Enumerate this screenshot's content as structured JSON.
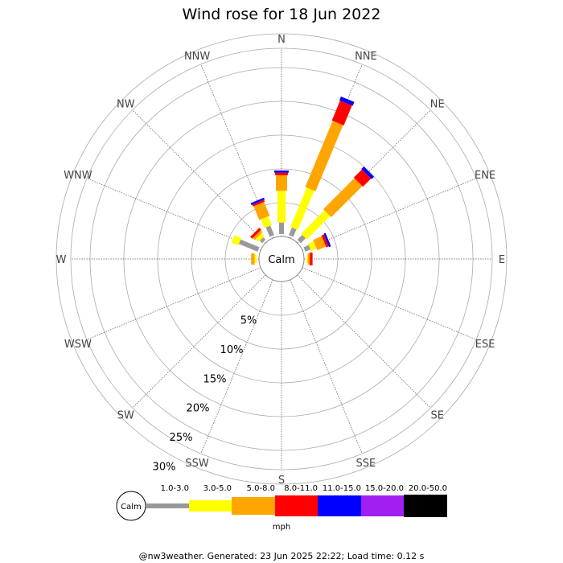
{
  "chart_data": {
    "type": "windrose",
    "title": "Wind rose for 18 Jun 2022",
    "calm_label": "Calm",
    "directions": [
      "N",
      "NNE",
      "NE",
      "ENE",
      "E",
      "ESE",
      "SE",
      "SSE",
      "S",
      "SSW",
      "SW",
      "WSW",
      "W",
      "WNW",
      "NW",
      "NNW"
    ],
    "ring_labels": [
      "5%",
      "10%",
      "15%",
      "20%",
      "25%",
      "30%"
    ],
    "ring_values": [
      5,
      10,
      15,
      20,
      25,
      30
    ],
    "unit": "mph",
    "bins": [
      {
        "label": "1.0-3.0",
        "color": "#999999"
      },
      {
        "label": "3.0-5.0",
        "color": "#ffff00"
      },
      {
        "label": "5.0-8.0",
        "color": "#ffa500"
      },
      {
        "label": "8.0-11.0",
        "color": "#ff0000"
      },
      {
        "label": "11.0-15.0",
        "color": "#0000ff"
      },
      {
        "label": "15.0-20.0",
        "color": "#a020f0"
      },
      {
        "label": "20.0-50.0",
        "color": "#000000"
      }
    ],
    "series": [
      {
        "direction": "N",
        "values": [
          1.7,
          4.7,
          2.3,
          0.4,
          0.3,
          0,
          0
        ]
      },
      {
        "direction": "NNE",
        "values": [
          1.2,
          6.3,
          10.6,
          3.2,
          0.6,
          0,
          0
        ]
      },
      {
        "direction": "NE",
        "values": [
          1.0,
          4.9,
          6.5,
          1.7,
          0.5,
          0,
          0
        ]
      },
      {
        "direction": "ENE",
        "values": [
          0.8,
          0.9,
          1.4,
          0.4,
          0.3,
          0,
          0
        ]
      },
      {
        "direction": "E",
        "values": [
          0,
          0.2,
          0.3,
          0.4,
          0,
          0,
          0
        ]
      },
      {
        "direction": "ESE",
        "values": [
          0,
          0,
          0,
          0,
          0,
          0,
          0
        ]
      },
      {
        "direction": "SE",
        "values": [
          0,
          0,
          0,
          0,
          0,
          0,
          0
        ]
      },
      {
        "direction": "SSE",
        "values": [
          0,
          0,
          0,
          0,
          0,
          0,
          0
        ]
      },
      {
        "direction": "S",
        "values": [
          0,
          0,
          0,
          0,
          0,
          0,
          0
        ]
      },
      {
        "direction": "SSW",
        "values": [
          0,
          0,
          0,
          0,
          0,
          0,
          0
        ]
      },
      {
        "direction": "SW",
        "values": [
          0,
          0,
          0,
          0,
          0,
          0,
          0
        ]
      },
      {
        "direction": "WSW",
        "values": [
          0,
          0,
          0,
          0,
          0,
          0,
          0
        ]
      },
      {
        "direction": "W",
        "values": [
          0,
          0.3,
          0.5,
          0,
          0,
          0,
          0
        ]
      },
      {
        "direction": "WNW",
        "values": [
          3.0,
          1.1,
          0,
          0,
          0,
          0,
          0
        ]
      },
      {
        "direction": "NW",
        "values": [
          0.5,
          0.6,
          0.4,
          0.4,
          0,
          0,
          0
        ]
      },
      {
        "direction": "NNW",
        "values": [
          1.5,
          1.4,
          2.2,
          0.3,
          0.3,
          0,
          0
        ]
      }
    ]
  },
  "footer": "@nw3weather. Generated: 23 Jun 2025 22:22; Load time: 0.12 s"
}
